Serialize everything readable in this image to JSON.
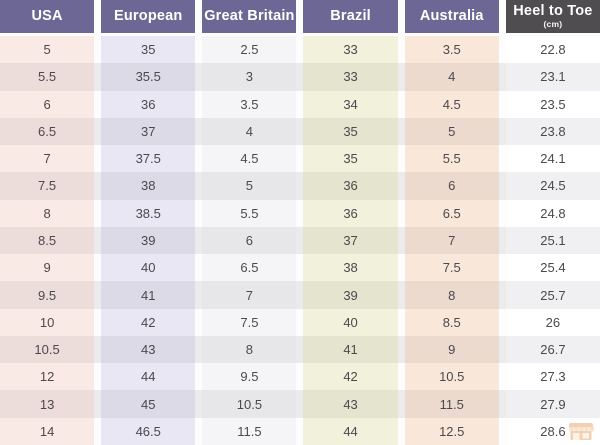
{
  "chart_data": {
    "type": "table",
    "title": "Shoe size conversion table",
    "columns": [
      {
        "label": "USA"
      },
      {
        "label": "European"
      },
      {
        "label": "Great Britain"
      },
      {
        "label": "Brazil"
      },
      {
        "label": "Australia"
      },
      {
        "label": "Heel to Toe",
        "unit": "(cm)"
      }
    ],
    "rows": [
      [
        "5",
        "35",
        "2.5",
        "33",
        "3.5",
        "22.8"
      ],
      [
        "5.5",
        "35.5",
        "3",
        "33",
        "4",
        "23.1"
      ],
      [
        "6",
        "36",
        "3.5",
        "34",
        "4.5",
        "23.5"
      ],
      [
        "6.5",
        "37",
        "4",
        "35",
        "5",
        "23.8"
      ],
      [
        "7",
        "37.5",
        "4.5",
        "35",
        "5.5",
        "24.1"
      ],
      [
        "7.5",
        "38",
        "5",
        "36",
        "6",
        "24.5"
      ],
      [
        "8",
        "38.5",
        "5.5",
        "36",
        "6.5",
        "24.8"
      ],
      [
        "8.5",
        "39",
        "6",
        "37",
        "7",
        "25.1"
      ],
      [
        "9",
        "40",
        "6.5",
        "38",
        "7.5",
        "25.4"
      ],
      [
        "9.5",
        "41",
        "7",
        "39",
        "8",
        "25.7"
      ],
      [
        "10",
        "42",
        "7.5",
        "40",
        "8.5",
        "26"
      ],
      [
        "10.5",
        "43",
        "8",
        "41",
        "9",
        "26.7"
      ],
      [
        "12",
        "44",
        "9.5",
        "42",
        "10.5",
        "27.3"
      ],
      [
        "13",
        "45",
        "10.5",
        "43",
        "11.5",
        "27.9"
      ],
      [
        "14",
        "46.5",
        "11.5",
        "44",
        "12.5",
        "28.6"
      ]
    ]
  },
  "colors": {
    "header_purple": "#6c6794",
    "header_dark": "#504d50",
    "body_text": "#4c494c",
    "gap_light": "#fdfdfe",
    "gap_dark": "#ebebee",
    "usa_light": "#f9eae5",
    "usa_dark": "#ecdcda",
    "euro_light": "#e8e7f3",
    "euro_dark": "#dbdae6",
    "gb_light": "#f5f5f7",
    "gb_dark": "#e7e7ea",
    "brazil_light": "#f2f1dc",
    "brazil_dark": "#e5e4cf",
    "aus_light": "#f9e8da",
    "aus_dark": "#ecdacf",
    "heel_light": "#ffffff",
    "heel_dark": "#f0eff2",
    "watermark_orange": "#e8a368"
  },
  "watermark": {
    "icon": "storefront-logo-icon"
  }
}
